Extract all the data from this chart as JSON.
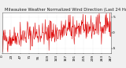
{
  "title": "Milwaukee Weather Normalized Wind Direction (Last 24 Hours)",
  "bg_color": "#f0f0f0",
  "plot_bg_color": "#ffffff",
  "line_color": "#dd0000",
  "grid_color": "#cccccc",
  "ylim": [
    -6.5,
    6.5
  ],
  "yticks": [
    5,
    0,
    -5
  ],
  "ytick_labels": [
    "5",
    "0",
    "-5"
  ],
  "n_points": 288,
  "seed": 42,
  "title_fontsize": 3.8,
  "tick_fontsize": 3.2,
  "linewidth": 0.4
}
